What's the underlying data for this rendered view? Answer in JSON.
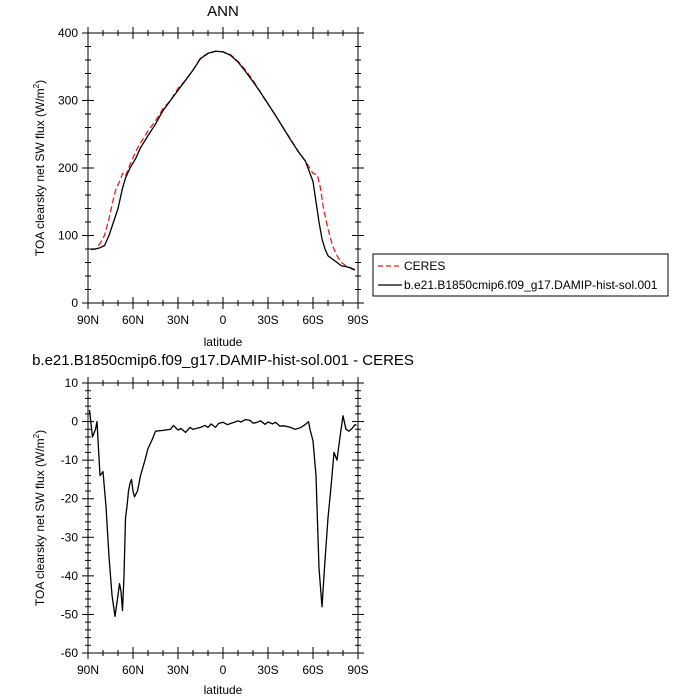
{
  "chart_data": [
    {
      "type": "line",
      "title": "ANN",
      "xlabel": "latitude",
      "ylabel": "TOA clearsky net SW flux (W/m",
      "ylabel_sup": "2",
      "ylabel_close": ")",
      "xlim": [
        90,
        -90
      ],
      "ylim": [
        0,
        400
      ],
      "xticks": [
        90,
        60,
        30,
        0,
        -30,
        -60,
        -90
      ],
      "xtick_labels": [
        "90N",
        "60N",
        "30N",
        "0",
        "30S",
        "60S",
        "90S"
      ],
      "yticks": [
        0,
        100,
        200,
        300,
        400
      ],
      "ytick_labels": [
        "0",
        "100",
        "200",
        "300",
        "400"
      ],
      "legend_position": "right",
      "series": [
        {
          "name": "CERES",
          "color": "#e8201f",
          "dash": true,
          "x": [
            88,
            85,
            82,
            79,
            76,
            73,
            71,
            70,
            68,
            67,
            65,
            62,
            58,
            55,
            50,
            45,
            40,
            35,
            30,
            25,
            20,
            15,
            10,
            5,
            0,
            -5,
            -10,
            -15,
            -20,
            -25,
            -30,
            -35,
            -40,
            -45,
            -50,
            -55,
            -60,
            -63,
            -65,
            -67,
            -70,
            -73,
            -76,
            -79,
            -82,
            -85,
            -88
          ],
          "y": [
            79,
            80,
            88,
            100,
            125,
            155,
            172,
            175,
            185,
            192,
            188,
            205,
            225,
            237,
            255,
            270,
            288,
            300,
            318,
            330,
            345,
            363,
            370,
            373,
            372,
            368,
            358,
            345,
            330,
            312,
            295,
            278,
            260,
            243,
            225,
            210,
            192,
            190,
            170,
            140,
            110,
            85,
            70,
            60,
            55,
            52,
            48
          ]
        },
        {
          "name": "b.e21.B1850cmip6.f09_g17.DAMIP-hist-sol.001",
          "color": "#000000",
          "dash": false,
          "x": [
            88,
            85,
            82,
            79,
            76,
            73,
            70,
            67,
            65,
            62,
            58,
            55,
            50,
            45,
            40,
            35,
            30,
            25,
            20,
            15,
            10,
            5,
            0,
            -5,
            -10,
            -15,
            -20,
            -25,
            -30,
            -35,
            -40,
            -45,
            -50,
            -55,
            -60,
            -62,
            -64,
            -66,
            -68,
            -70,
            -73,
            -76,
            -79,
            -82,
            -85,
            -88
          ],
          "y": [
            80,
            80,
            82,
            85,
            100,
            120,
            140,
            170,
            185,
            200,
            215,
            230,
            248,
            265,
            285,
            300,
            315,
            330,
            345,
            362,
            370,
            373,
            372,
            367,
            357,
            343,
            328,
            312,
            295,
            278,
            260,
            242,
            225,
            210,
            180,
            150,
            120,
            95,
            80,
            70,
            65,
            60,
            55,
            54,
            52,
            49
          ]
        }
      ]
    },
    {
      "type": "line",
      "title": "b.e21.B1850cmip6.f09_g17.DAMIP-hist-sol.001 - CERES",
      "xlabel": "latitude",
      "ylabel": "TOA clearsky net SW flux (W/m",
      "ylabel_sup": "2",
      "ylabel_close": ")",
      "xlim": [
        90,
        -90
      ],
      "ylim": [
        -60,
        10
      ],
      "xticks": [
        90,
        60,
        30,
        0,
        -30,
        -60,
        -90
      ],
      "xtick_labels": [
        "90N",
        "60N",
        "30N",
        "0",
        "30S",
        "60S",
        "90S"
      ],
      "yticks": [
        10,
        0,
        -10,
        -20,
        -30,
        -40,
        -50,
        -60
      ],
      "ytick_labels": [
        "10",
        "0",
        "-10",
        "-20",
        "-30",
        "-40",
        "-50",
        "-60"
      ],
      "series": [
        {
          "color": "#000000",
          "x": [
            89,
            87,
            85,
            84,
            82,
            80,
            78,
            76,
            74,
            72,
            70,
            69,
            68,
            67,
            66,
            65,
            64,
            63,
            62,
            61,
            60,
            59,
            57,
            55,
            52,
            50,
            47,
            45,
            40,
            35,
            33,
            30,
            28,
            25,
            22,
            20,
            18,
            15,
            12,
            10,
            8,
            5,
            3,
            0,
            -3,
            -5,
            -8,
            -10,
            -12,
            -15,
            -18,
            -20,
            -22,
            -25,
            -28,
            -30,
            -33,
            -35,
            -38,
            -40,
            -42,
            -45,
            -48,
            -50,
            -52,
            -55,
            -57,
            -58,
            -60,
            -62,
            -64,
            -66,
            -68,
            -70,
            -72,
            -74,
            -76,
            -78,
            -80,
            -82,
            -84,
            -86,
            -88,
            -89
          ],
          "y": [
            3,
            -4,
            -2,
            0,
            -14,
            -13,
            -22,
            -35,
            -45,
            -50.5,
            -45,
            -42,
            -44,
            -49,
            -40,
            -25,
            -22,
            -18,
            -16,
            -15,
            -18,
            -19.5,
            -18,
            -14,
            -10,
            -7,
            -4.5,
            -2.5,
            -2.3,
            -2,
            -1,
            -2.2,
            -1.8,
            -2.8,
            -1.5,
            -2,
            -1.8,
            -1.5,
            -1,
            -1.5,
            -0.6,
            -1.5,
            -0.5,
            -0.2,
            -0.8,
            -0.5,
            -0.1,
            0.2,
            -0.1,
            0.5,
            0.3,
            -0.4,
            -0.3,
            0.2,
            -0.7,
            -0.1,
            -0.6,
            -0.2,
            -1.2,
            -1.1,
            -1.2,
            -1.5,
            -2,
            -1.8,
            -1.5,
            -0.7,
            0,
            -2,
            -5,
            -14,
            -38,
            -48,
            -36,
            -25,
            -17,
            -8,
            -10,
            -4,
            1.5,
            -2,
            -2.5,
            -1.8,
            -0.8,
            -1
          ]
        }
      ]
    }
  ]
}
